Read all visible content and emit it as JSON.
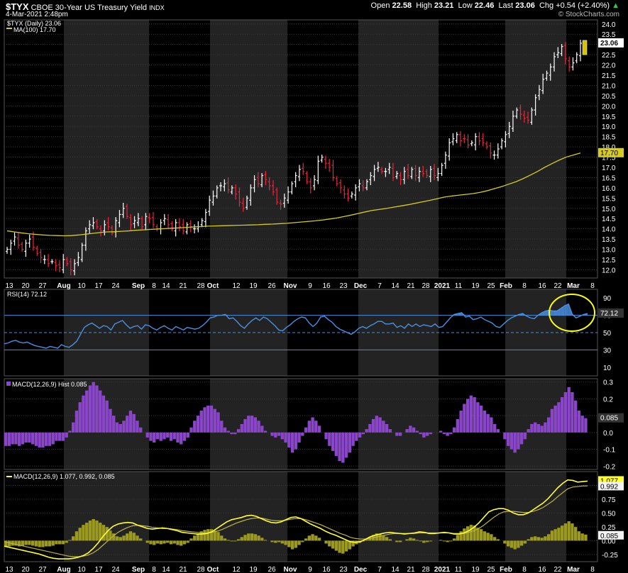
{
  "header": {
    "symbol": "$TYX",
    "name": "CBOE 30-Year US Treasury Yield",
    "exchange": "INDX",
    "date": "4-Mar-2021 2:48pm",
    "open_label": "Open",
    "open": "22.58",
    "high_label": "High",
    "high": "23.21",
    "low_label": "Low",
    "low": "22.46",
    "last_label": "Last",
    "last": "23.06",
    "chg_label": "Chg",
    "chg": "+0.54 (+2.40%)",
    "watermark": "© StockCharts.com"
  },
  "colors": {
    "up": "#ffffff",
    "down": "#e8263c",
    "ma": "#d7cb1f",
    "rsi": "#4a8fe0",
    "macd_hist": "#8a46c8",
    "macd_line": "#ffff33",
    "signal": "#b9b24a",
    "highlight": "#ffff00"
  },
  "chart_data": [
    {
      "type": "ohlc",
      "legend": [
        "$TYX (Daily) 23.06",
        "MA(100) 17.70"
      ],
      "last_badge": "23.06",
      "ma_badge": "17.70",
      "yticks": [
        "12.0",
        "12.5",
        "13.0",
        "13.5",
        "14.0",
        "14.5",
        "15.0",
        "15.5",
        "16.0",
        "16.5",
        "17.0",
        "17.5",
        "18.0",
        "18.5",
        "19.0",
        "19.5",
        "20.0",
        "20.5",
        "21.0",
        "21.5",
        "22.0",
        "22.5",
        "23.0",
        "23.5",
        "24.0"
      ],
      "ylim": [
        11.6,
        24.2
      ],
      "xticks": [
        "13",
        "20",
        "27",
        "Aug",
        "10",
        "17",
        "24",
        "Sep",
        "8",
        "14",
        "21",
        "28",
        "Oct",
        "12",
        "19",
        "26",
        "Nov",
        "9",
        "16",
        "23",
        "Dec",
        "7",
        "14",
        "21",
        "28",
        "2021",
        "11",
        "19",
        "25",
        "Feb",
        "8",
        "16",
        "22",
        "Mar",
        "8"
      ],
      "close": [
        13.0,
        13.3,
        13.6,
        13.2,
        13.0,
        13.3,
        13.5,
        13.1,
        12.8,
        12.6,
        12.5,
        12.3,
        12.4,
        12.2,
        12.1,
        12.5,
        12.3,
        12.0,
        12.3,
        12.6,
        13.2,
        13.9,
        14.2,
        14.3,
        14.1,
        13.9,
        14.2,
        14.1,
        13.8,
        14.4,
        14.7,
        15.0,
        14.6,
        14.2,
        14.4,
        14.5,
        14.1,
        14.6,
        14.5,
        14.2,
        14.0,
        14.3,
        14.5,
        14.2,
        14.0,
        14.3,
        14.1,
        13.9,
        14.2,
        14.1,
        14.0,
        14.1,
        14.4,
        14.8,
        15.4,
        15.6,
        16.0,
        16.1,
        16.2,
        15.9,
        16.0,
        15.7,
        15.3,
        15.0,
        15.5,
        16.0,
        16.4,
        16.2,
        16.6,
        16.4,
        16.1,
        15.8,
        15.3,
        15.2,
        15.5,
        15.8,
        16.2,
        16.6,
        16.9,
        16.8,
        16.3,
        16.0,
        16.4,
        17.3,
        17.5,
        17.2,
        17.0,
        16.5,
        16.2,
        16.0,
        15.7,
        15.5,
        15.7,
        16.0,
        16.2,
        16.0,
        16.3,
        16.6,
        16.9,
        17.0,
        16.8,
        16.8,
        17.0,
        16.5,
        16.7,
        16.4,
        16.8,
        16.6,
        16.9,
        16.6,
        16.8,
        16.7,
        16.6,
        16.9,
        16.6,
        16.7,
        17.1,
        17.6,
        18.2,
        18.4,
        18.6,
        18.3,
        18.4,
        18.1,
        18.2,
        18.5,
        18.3,
        18.2,
        18.0,
        17.7,
        17.6,
        17.9,
        18.3,
        18.6,
        19.0,
        19.5,
        19.8,
        19.6,
        19.4,
        19.3,
        19.8,
        20.4,
        20.8,
        21.3,
        21.6,
        21.9,
        22.4,
        22.6,
        22.9,
        22.3,
        21.9,
        22.1,
        22.5,
        23.06
      ],
      "ma": [
        13.9,
        13.85,
        13.8,
        13.76,
        13.73,
        13.7,
        13.68,
        13.67,
        13.66,
        13.67,
        13.7,
        13.74,
        13.78,
        13.82,
        13.85,
        13.86,
        13.88,
        13.9,
        13.93,
        13.95,
        13.97,
        13.99,
        14.01,
        14.03,
        14.05,
        14.07,
        14.09,
        14.11,
        14.13,
        14.14,
        14.15,
        14.16,
        14.17,
        14.18,
        14.19,
        14.2,
        14.22,
        14.23,
        14.25,
        14.27,
        14.3,
        14.33,
        14.36,
        14.39,
        14.43,
        14.48,
        14.53,
        14.6,
        14.67,
        14.75,
        14.83,
        14.9,
        14.95,
        15.0,
        15.06,
        15.12,
        15.18,
        15.25,
        15.32,
        15.39,
        15.47,
        15.55,
        15.6,
        15.64,
        15.68,
        15.72,
        15.78,
        15.86,
        15.96,
        16.06,
        16.18,
        16.3,
        16.45,
        16.62,
        16.8,
        17.0,
        17.18,
        17.35,
        17.5,
        17.6,
        17.7
      ],
      "ma_start_index": 70
    },
    {
      "type": "line",
      "legend": "RSI(14) 72.12",
      "badge": "72.12",
      "yticks": [
        "90",
        "70",
        "50",
        "30",
        "10"
      ],
      "ylim": [
        0,
        100
      ],
      "guides": [
        70,
        50,
        30
      ],
      "values": [
        37,
        38,
        40,
        41,
        39,
        38,
        39,
        37,
        35,
        34,
        33,
        32,
        34,
        33,
        32,
        36,
        34,
        33,
        36,
        40,
        48,
        56,
        59,
        61,
        58,
        55,
        58,
        57,
        53,
        60,
        62,
        64,
        59,
        55,
        57,
        58,
        54,
        59,
        58,
        55,
        53,
        56,
        58,
        55,
        53,
        57,
        55,
        53,
        56,
        55,
        54,
        55,
        58,
        62,
        67,
        68,
        70,
        70,
        71,
        66,
        67,
        63,
        58,
        55,
        60,
        64,
        67,
        64,
        68,
        66,
        62,
        58,
        53,
        52,
        56,
        59,
        63,
        66,
        68,
        67,
        61,
        57,
        61,
        68,
        69,
        65,
        62,
        57,
        54,
        52,
        50,
        48,
        51,
        55,
        57,
        55,
        58,
        60,
        63,
        63,
        60,
        60,
        61,
        56,
        58,
        55,
        60,
        57,
        60,
        57,
        59,
        58,
        57,
        60,
        56,
        57,
        62,
        67,
        71,
        72,
        73,
        68,
        69,
        65,
        66,
        68,
        65,
        63,
        61,
        57,
        56,
        60,
        64,
        67,
        69,
        71,
        72,
        69,
        67,
        66,
        70,
        73,
        75,
        76,
        75,
        75,
        78,
        81,
        83,
        71,
        67,
        69,
        71,
        72.12
      ]
    },
    {
      "type": "bar",
      "legend": "MACD(12,26,9) Hist 0.085",
      "badge": "0.085",
      "yticks": [
        "0.3",
        "0.2",
        "0.1",
        "0.0",
        "-0.1",
        "-0.2"
      ],
      "ylim": [
        -0.22,
        0.32
      ],
      "values": [
        -0.08,
        -0.08,
        -0.07,
        -0.07,
        -0.08,
        -0.07,
        -0.06,
        -0.06,
        -0.07,
        -0.08,
        -0.09,
        -0.09,
        -0.08,
        -0.08,
        -0.07,
        -0.05,
        -0.05,
        -0.05,
        -0.03,
        0.01,
        0.06,
        0.13,
        0.18,
        0.22,
        0.25,
        0.28,
        0.3,
        0.28,
        0.25,
        0.22,
        0.19,
        0.14,
        0.1,
        0.06,
        0.05,
        0.07,
        0.1,
        0.13,
        0.11,
        0.07,
        0.03,
        0.0,
        -0.03,
        -0.05,
        -0.06,
        -0.04,
        -0.05,
        -0.04,
        -0.03,
        -0.05,
        -0.04,
        -0.06,
        -0.07,
        -0.05,
        -0.03,
        0.03,
        0.07,
        0.1,
        0.13,
        0.15,
        0.16,
        0.16,
        0.14,
        0.12,
        0.07,
        0.03,
        0.01,
        -0.01,
        -0.01,
        0.02,
        0.05,
        0.08,
        0.1,
        0.1,
        0.09,
        0.07,
        0.04,
        0.01,
        0.0,
        -0.02,
        -0.03,
        -0.02,
        -0.04,
        -0.06,
        -0.09,
        -0.12,
        -0.1,
        -0.06,
        -0.02,
        0.03,
        0.07,
        0.09,
        0.07,
        0.04,
        0.0,
        -0.04,
        -0.08,
        -0.11,
        -0.14,
        -0.17,
        -0.18,
        -0.15,
        -0.12,
        -0.08,
        -0.05,
        -0.03,
        -0.01,
        0.02,
        0.05,
        0.08,
        0.1,
        0.09,
        0.07,
        0.05,
        0.02,
        0.0,
        -0.02,
        -0.02,
        0.0,
        0.02,
        0.04,
        0.03,
        0.01,
        -0.01,
        -0.03,
        -0.02,
        -0.01,
        0.0,
        0.0,
        0.01,
        -0.01,
        -0.02,
        -0.01,
        0.03,
        0.08,
        0.13,
        0.17,
        0.2,
        0.22,
        0.21,
        0.18,
        0.16,
        0.13,
        0.11,
        0.09,
        0.05,
        0.02,
        0.0,
        -0.04,
        -0.08,
        -0.1,
        -0.12,
        -0.1,
        -0.07,
        -0.04,
        0.02,
        0.05,
        0.06,
        0.05,
        0.04,
        0.06,
        0.09,
        0.14,
        0.16,
        0.18,
        0.21,
        0.24,
        0.27,
        0.24,
        0.19,
        0.13,
        0.1,
        0.085
      ]
    },
    {
      "type": "line",
      "legend": "MACD(12,26,9) 1.077, 0.992, 0.085",
      "badges": [
        "1.077",
        "0.992",
        "0.085"
      ],
      "yticks": [
        "1.00",
        "0.75",
        "0.50",
        "0.25",
        "0.00",
        "-0.25"
      ],
      "ylim": [
        -0.38,
        1.25
      ],
      "macd": [
        -0.1,
        -0.12,
        -0.14,
        -0.16,
        -0.18,
        -0.2,
        -0.22,
        -0.24,
        -0.27,
        -0.3,
        -0.32,
        -0.33,
        -0.33,
        -0.33,
        -0.32,
        -0.3,
        -0.27,
        -0.22,
        -0.14,
        -0.04,
        0.08,
        0.18,
        0.26,
        0.3,
        0.32,
        0.33,
        0.32,
        0.28,
        0.25,
        0.22,
        0.21,
        0.22,
        0.23,
        0.22,
        0.2,
        0.18,
        0.15,
        0.14,
        0.13,
        0.12,
        0.12,
        0.13,
        0.16,
        0.22,
        0.28,
        0.34,
        0.38,
        0.4,
        0.42,
        0.45,
        0.46,
        0.44,
        0.4,
        0.36,
        0.33,
        0.32,
        0.34,
        0.38,
        0.42,
        0.43,
        0.4,
        0.35,
        0.3,
        0.26,
        0.22,
        0.17,
        0.13,
        0.1,
        0.06,
        0.02,
        -0.02,
        -0.03,
        -0.02,
        0.02,
        0.07,
        0.1,
        0.12,
        0.14,
        0.15,
        0.14,
        0.13,
        0.12,
        0.13,
        0.14,
        0.16,
        0.15,
        0.13,
        0.13,
        0.14,
        0.15,
        0.14,
        0.12,
        0.12,
        0.14,
        0.18,
        0.24,
        0.32,
        0.42,
        0.52,
        0.56,
        0.58,
        0.58,
        0.55,
        0.5,
        0.47,
        0.47,
        0.5,
        0.56,
        0.62,
        0.68,
        0.76,
        0.86,
        0.96,
        1.04,
        1.1,
        1.09,
        1.06,
        1.07,
        1.077
      ],
      "signal": [
        -0.02,
        -0.04,
        -0.06,
        -0.08,
        -0.1,
        -0.12,
        -0.14,
        -0.16,
        -0.18,
        -0.2,
        -0.22,
        -0.24,
        -0.26,
        -0.28,
        -0.29,
        -0.29,
        -0.28,
        -0.26,
        -0.22,
        -0.16,
        -0.08,
        0.0,
        0.08,
        0.15,
        0.2,
        0.24,
        0.27,
        0.28,
        0.27,
        0.26,
        0.24,
        0.23,
        0.22,
        0.22,
        0.21,
        0.2,
        0.18,
        0.17,
        0.16,
        0.15,
        0.14,
        0.14,
        0.15,
        0.17,
        0.2,
        0.24,
        0.28,
        0.32,
        0.35,
        0.38,
        0.4,
        0.41,
        0.41,
        0.39,
        0.37,
        0.36,
        0.36,
        0.37,
        0.39,
        0.4,
        0.4,
        0.38,
        0.35,
        0.32,
        0.29,
        0.25,
        0.21,
        0.17,
        0.13,
        0.1,
        0.06,
        0.04,
        0.03,
        0.03,
        0.04,
        0.06,
        0.08,
        0.1,
        0.12,
        0.13,
        0.13,
        0.13,
        0.13,
        0.13,
        0.14,
        0.14,
        0.14,
        0.14,
        0.14,
        0.14,
        0.14,
        0.13,
        0.13,
        0.13,
        0.15,
        0.18,
        0.22,
        0.28,
        0.35,
        0.42,
        0.48,
        0.52,
        0.53,
        0.53,
        0.52,
        0.51,
        0.51,
        0.53,
        0.56,
        0.6,
        0.66,
        0.72,
        0.8,
        0.87,
        0.94,
        0.97,
        0.98,
        0.99,
        0.992
      ],
      "histogram_note": "same as MACD Hist panel"
    }
  ]
}
